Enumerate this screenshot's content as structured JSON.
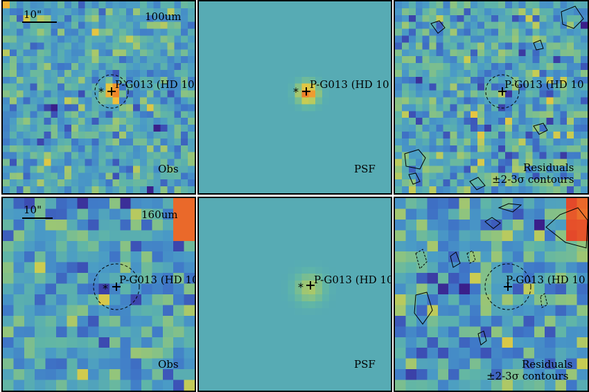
{
  "source_name": "P-G013 (HD 10",
  "scale_bar": "10\"",
  "rows": [
    {
      "band": "100um",
      "obs_label": "Obs",
      "psf_label": "PSF",
      "residual_label_1": "Residuals",
      "residual_label_2": "±2-3σ contours"
    },
    {
      "band": "160um",
      "obs_label": "Obs",
      "psf_label": "PSF",
      "residual_label_1": "Residuals",
      "residual_label_2": "±2-3σ contours"
    }
  ],
  "colormap": [
    "#3a1f8a",
    "#3c4fb5",
    "#3f78c8",
    "#4a9bc6",
    "#5fb5a8",
    "#8fc47e",
    "#c9cc52",
    "#f0c23a",
    "#f08a2a",
    "#e0312a"
  ]
}
